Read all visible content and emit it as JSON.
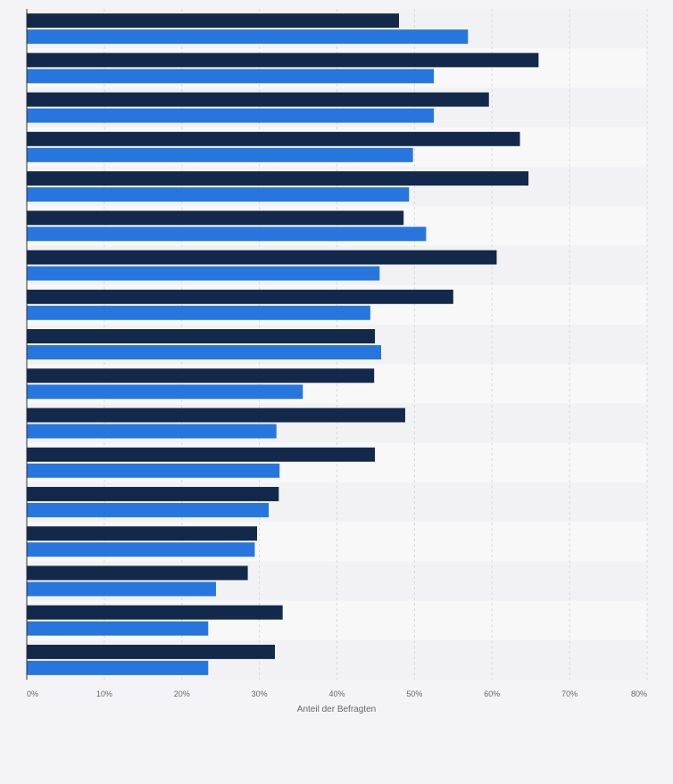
{
  "chart_data": {
    "type": "bar",
    "orientation": "horizontal",
    "categories": [
      "",
      "",
      "",
      "",
      "",
      "",
      "",
      "",
      "",
      "",
      "",
      "",
      "",
      "",
      "",
      "",
      ""
    ],
    "series": [
      {
        "color": "#13294b",
        "values": [
          48,
          66,
          59.6,
          63.6,
          64.7,
          48.6,
          60.6,
          55,
          44.9,
          44.8,
          48.8,
          44.9,
          32.5,
          29.7,
          28.5,
          33,
          32
        ]
      },
      {
        "color": "#2776dd",
        "values": [
          56.9,
          52.5,
          52.5,
          49.8,
          49.3,
          51.5,
          45.5,
          44.3,
          45.7,
          35.6,
          32.2,
          32.6,
          31.2,
          29.4,
          24.4,
          23.4,
          23.4
        ]
      }
    ],
    "xlim": [
      0,
      80
    ],
    "x_ticks": [
      "0%",
      "10%",
      "20%",
      "30%",
      "40%",
      "50%",
      "60%",
      "70%",
      "80%"
    ],
    "xlabel": "Anteil der Befragten",
    "grid": true
  }
}
